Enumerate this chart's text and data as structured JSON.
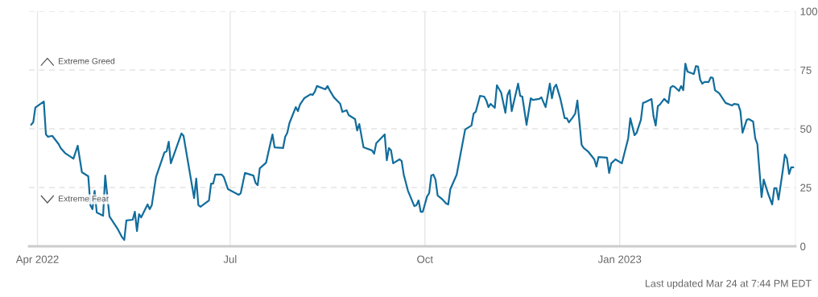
{
  "chart_data": {
    "type": "line",
    "x": [
      "2022-03-29",
      "2022-03-30",
      "2022-03-31",
      "2022-04-04",
      "2022-04-05",
      "2022-04-06",
      "2022-04-08",
      "2022-04-11",
      "2022-04-12",
      "2022-04-14",
      "2022-04-18",
      "2022-04-20",
      "2022-04-22",
      "2022-04-25",
      "2022-04-26",
      "2022-04-27",
      "2022-04-28",
      "2022-04-29",
      "2022-05-02",
      "2022-05-03",
      "2022-05-05",
      "2022-05-09",
      "2022-05-11",
      "2022-05-12",
      "2022-05-13",
      "2022-05-16",
      "2022-05-17",
      "2022-05-18",
      "2022-05-19",
      "2022-05-20",
      "2022-05-23",
      "2022-05-24",
      "2022-05-25",
      "2022-05-27",
      "2022-05-31",
      "2022-06-01",
      "2022-06-02",
      "2022-06-03",
      "2022-06-08",
      "2022-06-09",
      "2022-06-14",
      "2022-06-15",
      "2022-06-16",
      "2022-06-17",
      "2022-06-21",
      "2022-06-22",
      "2022-06-23",
      "2022-06-24",
      "2022-06-27",
      "2022-06-28",
      "2022-06-30",
      "2022-07-05",
      "2022-07-06",
      "2022-07-08",
      "2022-07-12",
      "2022-07-13",
      "2022-07-14",
      "2022-07-15",
      "2022-07-18",
      "2022-07-19",
      "2022-07-21",
      "2022-07-22",
      "2022-07-26",
      "2022-07-27",
      "2022-07-28",
      "2022-07-29",
      "2022-08-01",
      "2022-08-02",
      "2022-08-03",
      "2022-08-05",
      "2022-08-08",
      "2022-08-09",
      "2022-08-10",
      "2022-08-11",
      "2022-08-15",
      "2022-08-16",
      "2022-08-17",
      "2022-08-19",
      "2022-08-22",
      "2022-08-23",
      "2022-08-25",
      "2022-08-26",
      "2022-08-29",
      "2022-08-30",
      "2022-08-31",
      "2022-09-02",
      "2022-09-06",
      "2022-09-07",
      "2022-09-08",
      "2022-09-12",
      "2022-09-13",
      "2022-09-14",
      "2022-09-15",
      "2022-09-16",
      "2022-09-19",
      "2022-09-20",
      "2022-09-21",
      "2022-09-23",
      "2022-09-26",
      "2022-09-27",
      "2022-09-28",
      "2022-09-29",
      "2022-09-30",
      "2022-10-02",
      "2022-10-03",
      "2022-10-04",
      "2022-10-05",
      "2022-10-06",
      "2022-10-07",
      "2022-10-09",
      "2022-10-11",
      "2022-10-12",
      "2022-10-13",
      "2022-10-16",
      "2022-10-20",
      "2022-10-23",
      "2022-10-24",
      "2022-10-25",
      "2022-10-27",
      "2022-10-29",
      "2022-10-30",
      "2022-10-31",
      "2022-11-01",
      "2022-11-03",
      "2022-11-04",
      "2022-11-06",
      "2022-11-08",
      "2022-11-09",
      "2022-11-10",
      "2022-11-11",
      "2022-11-14",
      "2022-11-15",
      "2022-11-16",
      "2022-11-18",
      "2022-11-20",
      "2022-11-21",
      "2022-11-24",
      "2022-11-25",
      "2022-11-27",
      "2022-11-29",
      "2022-11-30",
      "2022-12-01",
      "2022-12-02",
      "2022-12-04",
      "2022-12-06",
      "2022-12-07",
      "2022-12-08",
      "2022-12-10",
      "2022-12-11",
      "2022-12-12",
      "2022-12-14",
      "2022-12-15",
      "2022-12-17",
      "2022-12-20",
      "2022-12-21",
      "2022-12-22",
      "2022-12-26",
      "2022-12-27",
      "2022-12-28",
      "2022-12-30",
      "2023-01-02",
      "2023-01-05",
      "2023-01-06",
      "2023-01-08",
      "2023-01-09",
      "2023-01-11",
      "2023-01-12",
      "2023-01-13",
      "2023-01-16",
      "2023-01-17",
      "2023-01-18",
      "2023-01-19",
      "2023-01-20",
      "2023-01-22",
      "2023-01-24",
      "2023-01-25",
      "2023-01-26",
      "2023-01-27",
      "2023-01-29",
      "2023-01-30",
      "2023-01-31",
      "2023-02-01",
      "2023-02-02",
      "2023-02-05",
      "2023-02-06",
      "2023-02-07",
      "2023-02-08",
      "2023-02-09",
      "2023-02-10",
      "2023-02-12",
      "2023-02-13",
      "2023-02-14",
      "2023-02-15",
      "2023-02-17",
      "2023-02-20",
      "2023-02-23",
      "2023-02-24",
      "2023-02-26",
      "2023-02-27",
      "2023-02-28",
      "2023-03-02",
      "2023-03-03",
      "2023-03-05",
      "2023-03-06",
      "2023-03-07",
      "2023-03-09",
      "2023-03-10",
      "2023-03-12",
      "2023-03-14",
      "2023-03-15",
      "2023-03-16",
      "2023-03-17",
      "2023-03-19",
      "2023-03-20",
      "2023-03-21",
      "2023-03-22",
      "2023-03-23",
      "2023-03-24"
    ],
    "series": [
      {
        "color": "#126d9c",
        "values": [
          51.7,
          52.7,
          59,
          61.6,
          47.6,
          46.6,
          47,
          43.5,
          41.8,
          39.7,
          37.3,
          42.8,
          31.5,
          29.8,
          17.5,
          15.8,
          23.6,
          14.4,
          13,
          30.1,
          12.7,
          7.2,
          3.8,
          2.7,
          11,
          11.3,
          14.7,
          6.5,
          13.7,
          12.3,
          17.8,
          15.8,
          17.5,
          29.5,
          40,
          40.4,
          44.5,
          35.3,
          48,
          47,
          20.5,
          28.8,
          17.5,
          16.8,
          19.5,
          26.7,
          26.7,
          30.5,
          30.5,
          29.5,
          24.3,
          21.9,
          22.6,
          31.2,
          30.1,
          27,
          26,
          33.2,
          35.6,
          39.7,
          47.6,
          42.1,
          41.8,
          46.6,
          48.3,
          52.4,
          59.2,
          57.5,
          60.3,
          63,
          64.7,
          64.4,
          65.8,
          68.2,
          66.8,
          68.2,
          66.4,
          63.4,
          60.6,
          57.2,
          57.9,
          55.8,
          54.1,
          49.3,
          52,
          42.1,
          40.8,
          39.4,
          43.8,
          47.6,
          36.6,
          41.8,
          40.8,
          35.3,
          37,
          36.3,
          30.5,
          23.6,
          17.1,
          17.5,
          19.5,
          14.7,
          14.7,
          21.2,
          22.6,
          30.1,
          30.5,
          28.4,
          21.6,
          20.2,
          18.2,
          17.8,
          24.3,
          30.5,
          49.7,
          51.4,
          56.5,
          57.2,
          64,
          63.7,
          62,
          59.2,
          60.6,
          58.9,
          68.5,
          65.4,
          56.8,
          64.4,
          66.4,
          57.5,
          69.2,
          64,
          63.7,
          51.7,
          63,
          62.3,
          62.7,
          63.4,
          59.2,
          69.2,
          63,
          67.5,
          68.8,
          62.7,
          54.5,
          54.5,
          52.7,
          55.1,
          56.5,
          62,
          43.2,
          41.8,
          40.4,
          37,
          33.9,
          38,
          37.7,
          31.2,
          35.3,
          37,
          35.3,
          45.9,
          54.5,
          47.3,
          48.3,
          53.8,
          61,
          61.3,
          62.7,
          55.1,
          51.4,
          59.6,
          60.3,
          62.7,
          61,
          67.5,
          68.2,
          67.8,
          66.1,
          68.2,
          66.4,
          77.7,
          74.3,
          73.3,
          76.7,
          76.4,
          70.9,
          69.2,
          69.9,
          69.9,
          71.9,
          71.6,
          66.4,
          65.1,
          61,
          59.9,
          60.6,
          60.3,
          57.5,
          48.3,
          53.8,
          54.1,
          53.1,
          45.9,
          43.5,
          20.9,
          28.4,
          22.6,
          17.8,
          24.7,
          24.7,
          19.9,
          32.2,
          39,
          37.3,
          30.8,
          33.6,
          33.6
        ]
      }
    ],
    "xlim": [
      "2022-03-28",
      "2023-03-25"
    ],
    "xticks": [
      {
        "value": "2022-04-01",
        "label": "Apr 2022"
      },
      {
        "value": "2022-07-01",
        "label": "Jul"
      },
      {
        "value": "2022-10-01",
        "label": "Oct"
      },
      {
        "value": "2023-01-01",
        "label": "Jan 2023"
      }
    ],
    "ylim": [
      0,
      100
    ],
    "yticks": [
      0,
      25,
      50,
      75,
      100
    ],
    "grid": true,
    "annotations": [
      "Extreme Greed",
      "Extreme Fear",
      "Last updated Mar 24 at 7:44 PM EDT"
    ]
  }
}
